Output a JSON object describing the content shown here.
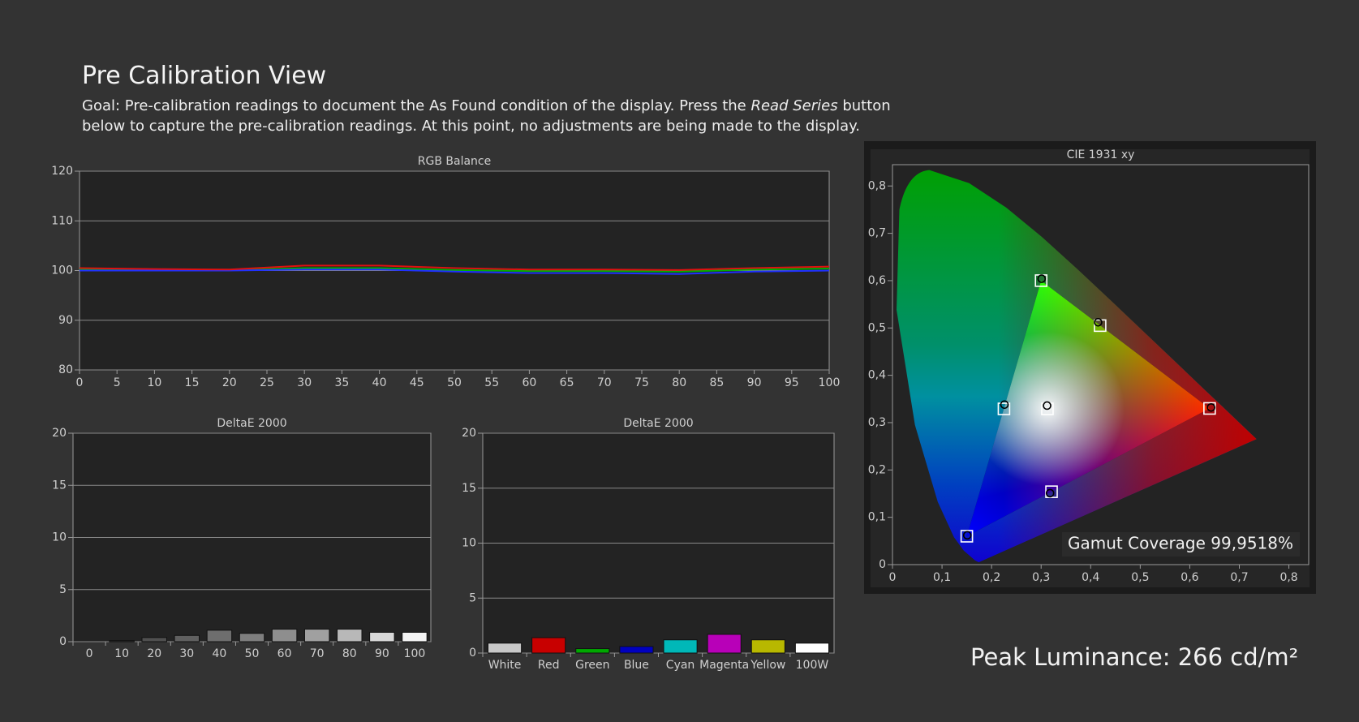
{
  "header": {
    "title": "Pre Calibration View",
    "goal_prefix": "Goal: Pre-calibration readings to document the As Found condition of the display. Press the ",
    "goal_emphasis": "Read Series",
    "goal_suffix": " button below to capture the pre-calibration readings. At this point, no adjustments are being made to the display."
  },
  "chart_data": [
    {
      "type": "line",
      "title": "RGB Balance",
      "x": [
        0,
        10,
        20,
        30,
        40,
        50,
        60,
        70,
        80,
        90,
        100
      ],
      "series": [
        {
          "color": "#00b000",
          "values": [
            100.2,
            100.2,
            100.1,
            100.5,
            100.5,
            100.1,
            99.9,
            99.9,
            99.8,
            100.2,
            100.4
          ]
        },
        {
          "color": "#2030ff",
          "values": [
            100,
            100,
            100,
            100.2,
            100.2,
            99.8,
            99.5,
            99.5,
            99.3,
            99.8,
            100
          ]
        },
        {
          "color": "#e01010",
          "values": [
            100.5,
            100.3,
            100.2,
            101,
            101,
            100.5,
            100.2,
            100.2,
            100.1,
            100.5,
            100.8
          ]
        }
      ],
      "xlim": [
        0,
        100
      ],
      "xticks": [
        0,
        5,
        10,
        15,
        20,
        25,
        30,
        35,
        40,
        45,
        50,
        55,
        60,
        65,
        70,
        75,
        80,
        85,
        90,
        95,
        100
      ],
      "ylim": [
        80,
        120
      ],
      "yticks": [
        80,
        90,
        100,
        110,
        120
      ],
      "grid": true
    },
    {
      "type": "bar",
      "title": "DeltaE 2000",
      "categories": [
        "0",
        "10",
        "20",
        "30",
        "40",
        "50",
        "60",
        "70",
        "80",
        "90",
        "100"
      ],
      "values": [
        0,
        0.1,
        0.4,
        0.6,
        1.1,
        0.8,
        1.2,
        1.2,
        1.2,
        0.9,
        0.9
      ],
      "colors": [
        "#303030",
        "#404040",
        "#505050",
        "#606060",
        "#6e6e6e",
        "#7e7e7e",
        "#8e8e8e",
        "#a0a0a0",
        "#b8b8b8",
        "#d8d8d8",
        "#f4f4f4"
      ],
      "ylim": [
        0,
        20
      ],
      "yticks": [
        0,
        5,
        10,
        15,
        20
      ],
      "grid": true
    },
    {
      "type": "bar",
      "title": "DeltaE 2000",
      "categories": [
        "White",
        "Red",
        "Green",
        "Blue",
        "Cyan",
        "Magenta",
        "Yellow",
        "100W"
      ],
      "values": [
        0.9,
        1.4,
        0.4,
        0.6,
        1.2,
        1.7,
        1.2,
        0.9
      ],
      "colors": [
        "#c8c8c8",
        "#c80000",
        "#00a800",
        "#0000c0",
        "#00b8b8",
        "#b800b8",
        "#b8b800",
        "#ffffff"
      ],
      "ylim": [
        0,
        20
      ],
      "yticks": [
        0,
        5,
        10,
        15,
        20
      ],
      "grid": true
    },
    {
      "type": "scatter",
      "title": "CIE 1931 xy",
      "series": [
        {
          "marker": "square",
          "color": "#ffffff",
          "x": [
            0.64,
            0.3,
            0.15,
            0.3127,
            0.225,
            0.321,
            0.419
          ],
          "y": [
            0.33,
            0.6,
            0.06,
            0.329,
            0.329,
            0.154,
            0.505
          ]
        },
        {
          "marker": "circle",
          "color": "#000000",
          "x": [
            0.643,
            0.301,
            0.151,
            0.312,
            0.226,
            0.318,
            0.415
          ],
          "y": [
            0.332,
            0.604,
            0.062,
            0.336,
            0.338,
            0.151,
            0.512
          ]
        }
      ],
      "xlim": [
        0,
        0.84
      ],
      "xticks": [
        0,
        {
          "value": 0.1,
          "label": "0,1"
        },
        {
          "value": 0.2,
          "label": "0,2"
        },
        {
          "value": 0.3,
          "label": "0,3"
        },
        {
          "value": 0.4,
          "label": "0,4"
        },
        {
          "value": 0.5,
          "label": "0,5"
        },
        {
          "value": 0.6,
          "label": "0,6"
        },
        {
          "value": 0.7,
          "label": "0,7"
        },
        {
          "value": 0.8,
          "label": "0,8"
        }
      ],
      "ylim": [
        0,
        0.845
      ],
      "yticks": [
        0,
        {
          "value": 0.1,
          "label": "0,1"
        },
        {
          "value": 0.2,
          "label": "0,2"
        },
        {
          "value": 0.3,
          "label": "0,3"
        },
        {
          "value": 0.4,
          "label": "0,4"
        },
        {
          "value": 0.5,
          "label": "0,5"
        },
        {
          "value": 0.6,
          "label": "0,6"
        },
        {
          "value": 0.7,
          "label": "0,7"
        },
        {
          "value": 0.8,
          "label": "0,8"
        }
      ],
      "grid": false,
      "annotation": "Gamut Coverage 99,9518%"
    }
  ],
  "peak_luminance": "Peak Luminance: 266 cd/m²"
}
